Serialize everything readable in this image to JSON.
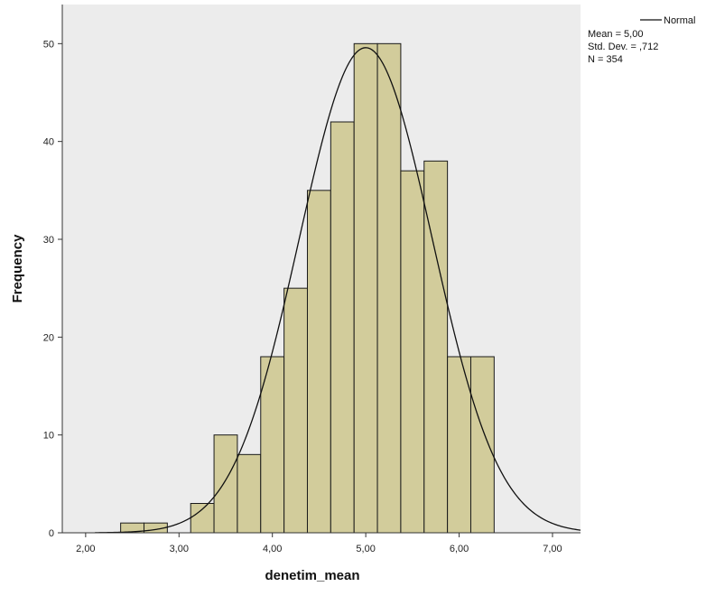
{
  "chart_data": {
    "type": "bar",
    "xlabel": "denetim_mean",
    "ylabel": "Frequency",
    "xlim": [
      1.75,
      7.3
    ],
    "ylim": [
      0,
      54
    ],
    "x_ticks": [
      2.0,
      3.0,
      4.0,
      5.0,
      6.0,
      7.0
    ],
    "x_tick_labels": [
      "2,00",
      "3,00",
      "4,00",
      "5,00",
      "6,00",
      "7,00"
    ],
    "y_ticks": [
      0,
      10,
      20,
      30,
      40,
      50
    ],
    "y_tick_labels": [
      "0",
      "10",
      "20",
      "30",
      "40",
      "50"
    ],
    "bins": [
      {
        "start": 2.375,
        "end": 2.625,
        "count": 1
      },
      {
        "start": 2.625,
        "end": 2.875,
        "count": 1
      },
      {
        "start": 3.125,
        "end": 3.375,
        "count": 3
      },
      {
        "start": 3.375,
        "end": 3.625,
        "count": 10
      },
      {
        "start": 3.625,
        "end": 3.875,
        "count": 8
      },
      {
        "start": 3.875,
        "end": 4.125,
        "count": 18
      },
      {
        "start": 4.125,
        "end": 4.375,
        "count": 25
      },
      {
        "start": 4.375,
        "end": 4.625,
        "count": 35
      },
      {
        "start": 4.625,
        "end": 4.875,
        "count": 42
      },
      {
        "start": 4.875,
        "end": 5.125,
        "count": 50
      },
      {
        "start": 5.125,
        "end": 5.375,
        "count": 50
      },
      {
        "start": 5.375,
        "end": 5.625,
        "count": 37
      },
      {
        "start": 5.625,
        "end": 5.875,
        "count": 38
      },
      {
        "start": 5.875,
        "end": 6.125,
        "count": 18
      },
      {
        "start": 6.125,
        "end": 6.375,
        "count": 18
      }
    ],
    "normal_curve": {
      "mean": 5.0,
      "std_dev": 0.712,
      "n": 354,
      "bin_width": 0.25
    },
    "legend": {
      "position": "top-right",
      "curve_label": "Normal",
      "stats": [
        "Mean = 5,00",
        "Std. Dev. = ,712",
        "N = 354"
      ]
    },
    "grid": false,
    "colors": {
      "bar_fill": "#d2cc9b",
      "bar_stroke": "#1a1a1a",
      "plot_bg": "#ececec",
      "curve": "#111111"
    }
  }
}
